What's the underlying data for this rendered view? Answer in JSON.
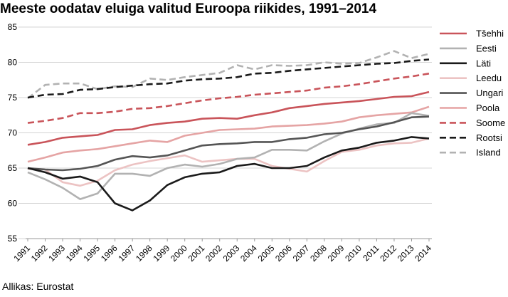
{
  "chart_data": {
    "type": "line",
    "title": "Meeste oodatav eluiga valitud Euroopa riikides, 1991–2014",
    "source": "Allikas: Eurostat",
    "xlabel": "",
    "ylabel": "",
    "ylim": [
      55,
      85
    ],
    "yticks": [
      55,
      60,
      65,
      70,
      75,
      80,
      85
    ],
    "grid": true,
    "legend_position": "right",
    "x": [
      "1991",
      "1992",
      "1993",
      "1994",
      "1995",
      "1996",
      "1997",
      "1998",
      "1999",
      "2000",
      "2001",
      "2002",
      "2003",
      "2004",
      "2005",
      "2006",
      "2007",
      "2008",
      "2009",
      "2010",
      "2011",
      "2012",
      "2013",
      "2014"
    ],
    "series": [
      {
        "name": "Tšehhi",
        "color": "#c9545a",
        "dash": "solid",
        "values": [
          68.3,
          68.7,
          69.3,
          69.5,
          69.7,
          70.4,
          70.5,
          71.1,
          71.4,
          71.6,
          72.0,
          72.1,
          72.0,
          72.5,
          72.9,
          73.5,
          73.8,
          74.1,
          74.3,
          74.5,
          74.8,
          75.1,
          75.2,
          75.8
        ]
      },
      {
        "name": "Eesti",
        "color": "#b2b2b2",
        "dash": "solid",
        "values": [
          64.4,
          63.4,
          62.2,
          60.6,
          61.4,
          64.2,
          64.2,
          63.9,
          65.0,
          65.5,
          65.2,
          65.6,
          66.3,
          66.5,
          67.6,
          67.6,
          67.5,
          68.8,
          69.9,
          70.6,
          71.2,
          71.4,
          72.8,
          72.4
        ]
      },
      {
        "name": "Läti",
        "color": "#1a1a1a",
        "dash": "solid",
        "values": [
          65.0,
          64.4,
          63.5,
          63.8,
          63.0,
          60.0,
          59.0,
          60.4,
          62.6,
          63.7,
          64.2,
          64.4,
          65.3,
          65.6,
          65.0,
          65.0,
          65.3,
          66.5,
          67.5,
          67.9,
          68.6,
          68.9,
          69.4,
          69.2
        ]
      },
      {
        "name": "Leedu",
        "color": "#ecc3c3",
        "dash": "solid",
        "values": [
          64.9,
          64.8,
          63.0,
          62.5,
          63.2,
          64.7,
          65.5,
          66.0,
          66.4,
          66.8,
          65.9,
          66.1,
          66.3,
          66.3,
          65.3,
          64.9,
          64.5,
          66.0,
          67.3,
          67.6,
          68.2,
          68.5,
          68.6,
          69.2
        ]
      },
      {
        "name": "Ungari",
        "color": "#555555",
        "dash": "solid",
        "values": [
          65.0,
          64.8,
          64.7,
          64.9,
          65.3,
          66.2,
          66.7,
          66.5,
          66.8,
          67.5,
          68.2,
          68.4,
          68.5,
          68.7,
          68.7,
          69.1,
          69.3,
          69.8,
          70.0,
          70.5,
          70.9,
          71.5,
          72.2,
          72.3
        ]
      },
      {
        "name": "Poola",
        "color": "#e5a4a4",
        "dash": "solid",
        "values": [
          65.9,
          66.5,
          67.2,
          67.5,
          67.7,
          68.1,
          68.5,
          68.9,
          68.7,
          69.6,
          70.0,
          70.4,
          70.5,
          70.6,
          70.9,
          71.0,
          71.1,
          71.3,
          71.6,
          72.2,
          72.5,
          72.7,
          72.9,
          73.7
        ]
      },
      {
        "name": "Soome",
        "color": "#c9545a",
        "dash": "dashed",
        "values": [
          71.4,
          71.7,
          72.1,
          72.8,
          72.8,
          73.0,
          73.4,
          73.5,
          73.8,
          74.2,
          74.6,
          74.9,
          75.1,
          75.4,
          75.6,
          75.8,
          76.0,
          76.4,
          76.6,
          76.9,
          77.3,
          77.7,
          78.0,
          78.4
        ]
      },
      {
        "name": "Rootsi",
        "color": "#1a1a1a",
        "dash": "dashed",
        "values": [
          75.0,
          75.4,
          75.5,
          76.1,
          76.2,
          76.5,
          76.7,
          76.9,
          77.0,
          77.4,
          77.6,
          77.7,
          77.9,
          78.4,
          78.5,
          78.8,
          79.0,
          79.2,
          79.4,
          79.6,
          79.8,
          79.9,
          80.2,
          80.4
        ]
      },
      {
        "name": "Island",
        "color": "#b2b2b2",
        "dash": "dashed",
        "values": [
          74.9,
          76.8,
          77.0,
          77.0,
          76.2,
          76.6,
          76.5,
          77.7,
          77.5,
          77.9,
          78.2,
          78.5,
          79.6,
          79.0,
          79.6,
          79.5,
          79.6,
          80.0,
          79.8,
          79.9,
          80.7,
          81.6,
          80.6,
          81.2
        ]
      }
    ]
  }
}
